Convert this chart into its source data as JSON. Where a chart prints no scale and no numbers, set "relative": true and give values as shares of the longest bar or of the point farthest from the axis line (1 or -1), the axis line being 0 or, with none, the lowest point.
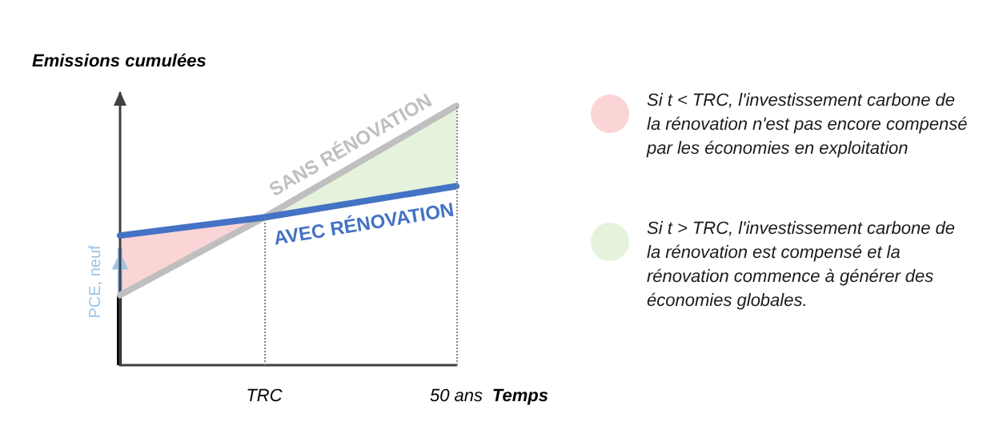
{
  "chart_data": {
    "type": "line",
    "relative": true,
    "xlabel": "Temps",
    "ylabel": "Emissions cumulées",
    "categories": [
      null,
      null,
      null,
      "TRC",
      null,
      null,
      null,
      "50 ans"
    ],
    "series": [
      {
        "name": "SANS RÉNOVATION",
        "color": "#bfbfbf",
        "values": [
          0.27,
          null,
          null,
          0.57,
          null,
          null,
          null,
          1
        ]
      },
      {
        "name": "AVEC RÉNOVATION",
        "color": "#4472c4",
        "values": [
          0.5,
          null,
          null,
          0.57,
          null,
          null,
          null,
          0.69
        ]
      }
    ],
    "ref_lines": [
      {
        "axis": "x",
        "value": "TRC"
      },
      {
        "axis": "x",
        "value": "50 ans"
      }
    ],
    "annotations": [
      "PCE, neuf",
      "Si t < TRC, l'investissement carbone de la rénovation n'est pas encore compensé par les économies en exploitation",
      "Si t > TRC, l'investissement carbone de la rénovation est compensé et la rénovation commence à générer des économies globales."
    ],
    "line_style": "solid",
    "marker": "none",
    "grid": false,
    "legend": false
  }
}
